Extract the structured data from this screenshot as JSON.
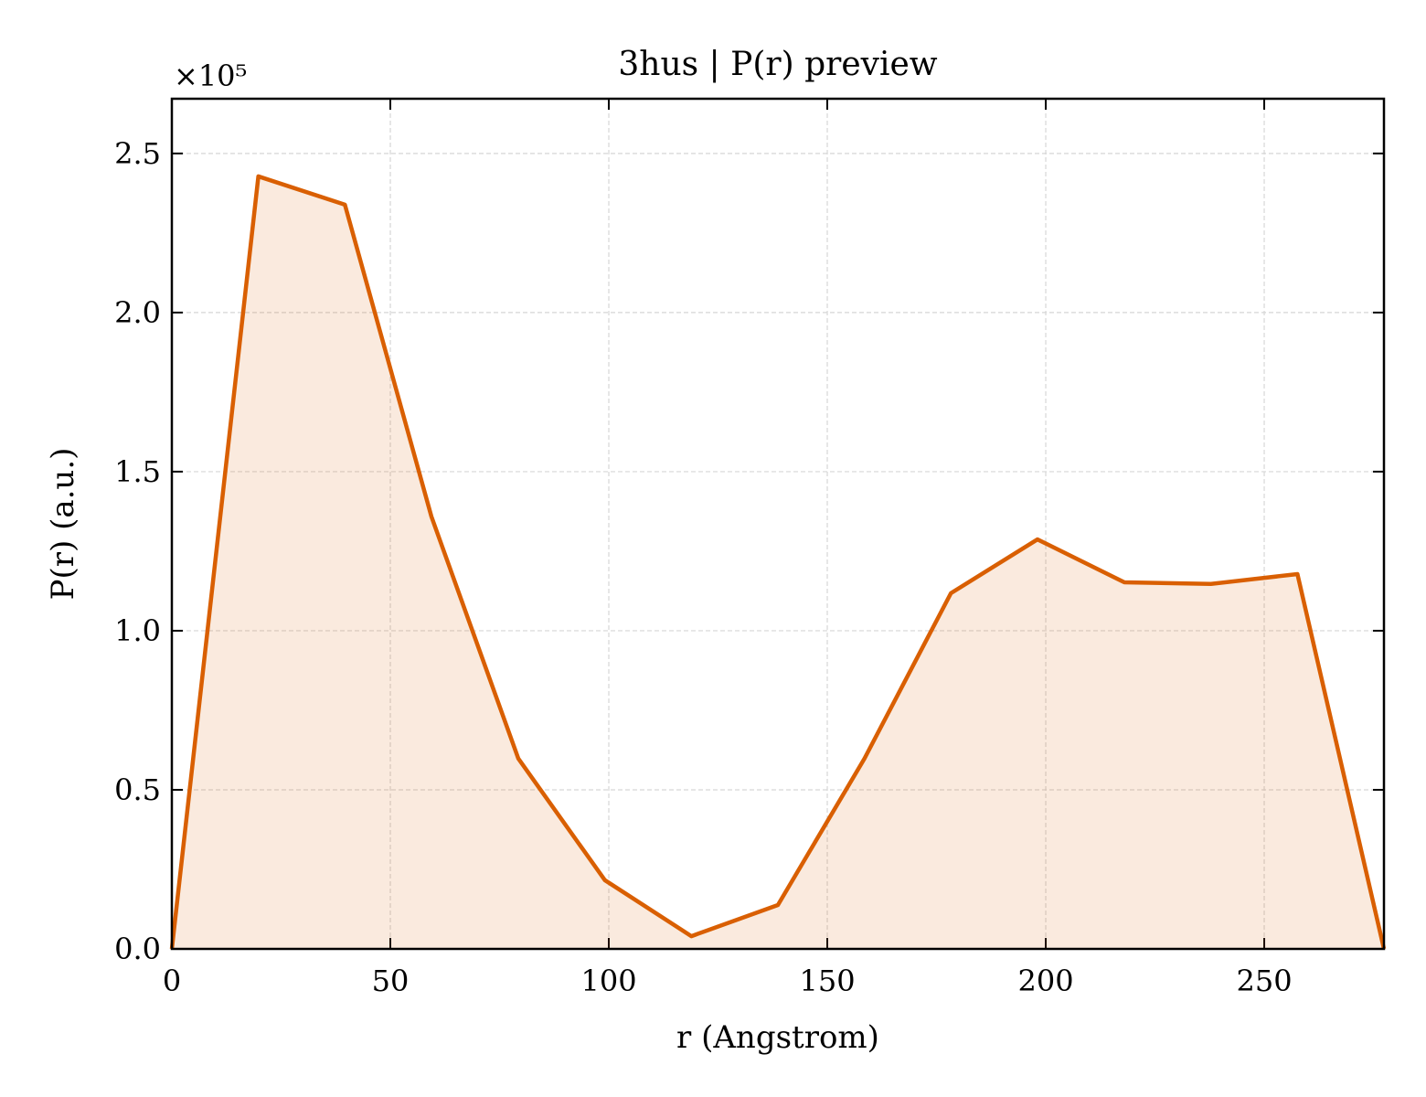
{
  "chart_data": {
    "type": "line",
    "title": "3hus | P(r) preview",
    "x_label": "r (Angstrom)",
    "y_label": "P(r) (a.u.)",
    "y_offset_label": "×10⁵",
    "x": [
      0,
      19.8,
      39.6,
      59.4,
      79.3,
      99.1,
      118.9,
      138.7,
      158.5,
      178.3,
      198.1,
      218.0,
      237.8,
      257.6,
      277.4
    ],
    "series": [
      {
        "name": "P(r)",
        "color": "#d95f02",
        "fill": true,
        "values": [
          0,
          2.428,
          2.339,
          1.359,
          0.598,
          0.216,
          0.04,
          0.138,
          0.598,
          1.118,
          1.287,
          1.152,
          1.147,
          1.178,
          0
        ]
      }
    ],
    "xlim": [
      0,
      277.4
    ],
    "ylim": [
      0,
      2.672
    ],
    "xticks": [
      0,
      50,
      100,
      150,
      200,
      250
    ],
    "yticks": [
      {
        "value": 0,
        "label": "0.0"
      },
      {
        "value": 0.5,
        "label": "0.5"
      },
      {
        "value": 1,
        "label": "1.0"
      },
      {
        "value": 1.5,
        "label": "1.5"
      },
      {
        "value": 2,
        "label": "2.0"
      },
      {
        "value": 2.5,
        "label": "2.5"
      }
    ],
    "grid": true
  }
}
